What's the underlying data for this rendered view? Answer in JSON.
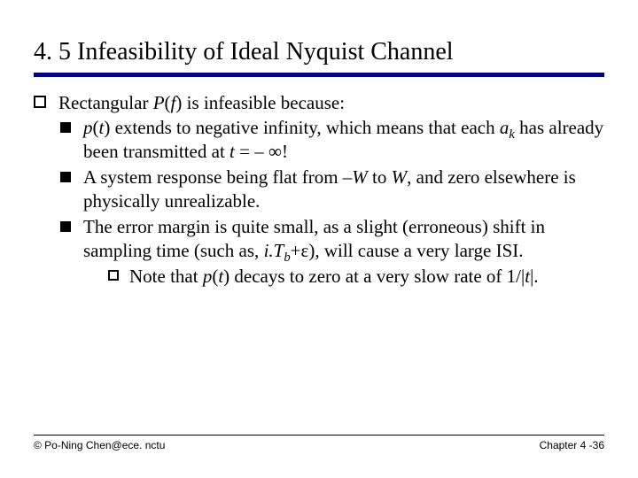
{
  "title": "4. 5 Infeasibility of Ideal Nyquist Channel",
  "content": {
    "intro_prefix": "Rectangular ",
    "intro_pf_p": "P",
    "intro_pf_open": "(",
    "intro_pf_f": "f",
    "intro_suffix": ") is infeasible because:",
    "b1_pt_p": "p",
    "b1_pt_open": "(",
    "b1_pt_t": "t",
    "b1_mid": ") extends to negative infinity, which means that each ",
    "b1_ak_a": "a",
    "b1_ak_k": "k",
    "b1_line2a": "has already been transmitted at ",
    "b1_t": "t",
    "b1_eq": " = – ∞!",
    "b2_a": "A system response being flat from –",
    "b2_w1": "W",
    "b2_b": " to ",
    "b2_w2": "W",
    "b2_c": ", and zero elsewhere is physically unrealizable.",
    "b3_a": "The error margin is quite small, as a slight (erroneous) shift in sampling time (such as, ",
    "b3_i": "i.T",
    "b3_sub_b": "b",
    "b3_plus_eps": "+ε",
    "b3_b": "), will cause a very large ISI.",
    "note_a": "Note that ",
    "note_p": "p",
    "note_open": "(",
    "note_t": "t",
    "note_mid": ") decays to zero at a very slow rate of 1/|",
    "note_t2": "t",
    "note_end": "|."
  },
  "footer": {
    "left": "© Po-Ning Chen@ece. nctu",
    "right": "Chapter 4 -36"
  },
  "colors": {
    "rule": "#000080",
    "text": "#000000",
    "background": "#ffffff"
  },
  "typography": {
    "title_fontsize": 28,
    "body_fontsize": 21,
    "footer_fontsize": 12,
    "body_font": "Times New Roman",
    "footer_font": "Arial"
  }
}
